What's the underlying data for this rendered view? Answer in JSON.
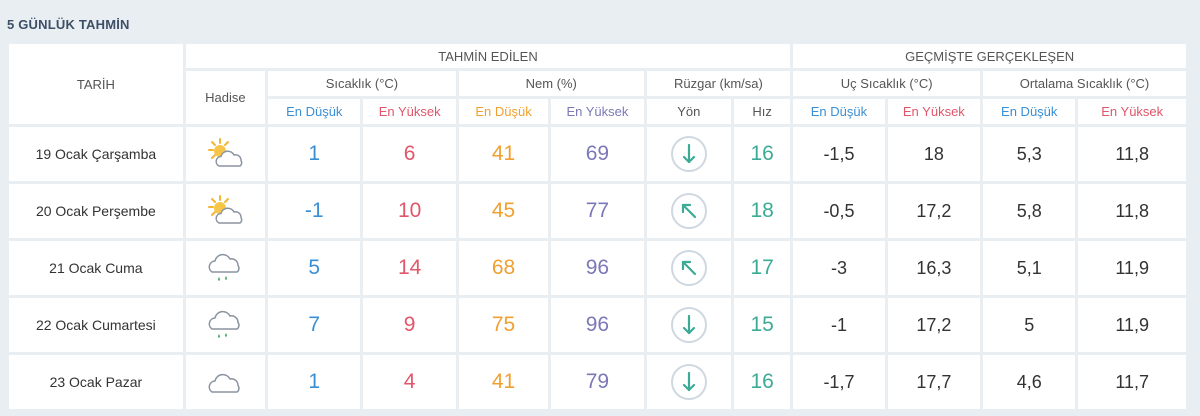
{
  "title": "5 GÜNLÜK TAHMİN",
  "headers": {
    "date": "TARİH",
    "hadise": "Hadise",
    "forecast_group": "TAHMİN EDİLEN",
    "past_group": "GEÇMİŞTE GERÇEKLEŞEN",
    "temp": "Sıcaklık (°C)",
    "humidity": "Nem (%)",
    "wind": "Rüzgar (km/sa)",
    "extreme_temp": "Uç Sıcaklık (°C)",
    "avg_temp": "Ortalama Sıcaklık (°C)",
    "min": "En Düşük",
    "max": "En Yüksek",
    "direction": "Yön",
    "speed": "Hız"
  },
  "colors": {
    "min": "#3a8fd4",
    "max": "#e0566a",
    "humidity_min": "#f0a030",
    "humidity_max": "#7a78b8",
    "speed": "#3cab96"
  },
  "days": [
    {
      "date": "19 Ocak Çarşamba",
      "icon": "partly-cloudy-icon",
      "temp_min": "1",
      "temp_max": "6",
      "hum_min": "41",
      "hum_max": "69",
      "wind_dir": "south-arrow-icon",
      "wind_speed": "16",
      "ext_min": "-1,5",
      "ext_max": "18",
      "avg_min": "5,3",
      "avg_max": "11,8"
    },
    {
      "date": "20 Ocak Perşembe",
      "icon": "partly-cloudy-icon",
      "temp_min": "-1",
      "temp_max": "10",
      "hum_min": "45",
      "hum_max": "77",
      "wind_dir": "northwest-arrow-icon",
      "wind_speed": "18",
      "ext_min": "-0,5",
      "ext_max": "17,2",
      "avg_min": "5,8",
      "avg_max": "11,8"
    },
    {
      "date": "21 Ocak Cuma",
      "icon": "light-rain-icon",
      "temp_min": "5",
      "temp_max": "14",
      "hum_min": "68",
      "hum_max": "96",
      "wind_dir": "northwest-arrow-icon",
      "wind_speed": "17",
      "ext_min": "-3",
      "ext_max": "16,3",
      "avg_min": "5,1",
      "avg_max": "11,9"
    },
    {
      "date": "22 Ocak Cumartesi",
      "icon": "light-rain-icon",
      "temp_min": "7",
      "temp_max": "9",
      "hum_min": "75",
      "hum_max": "96",
      "wind_dir": "south-arrow-icon",
      "wind_speed": "15",
      "ext_min": "-1",
      "ext_max": "17,2",
      "avg_min": "5",
      "avg_max": "11,9"
    },
    {
      "date": "23 Ocak Pazar",
      "icon": "cloudy-icon",
      "temp_min": "1",
      "temp_max": "4",
      "hum_min": "41",
      "hum_max": "79",
      "wind_dir": "south-arrow-icon",
      "wind_speed": "16",
      "ext_min": "-1,7",
      "ext_max": "17,7",
      "avg_min": "4,6",
      "avg_max": "11,7"
    }
  ]
}
